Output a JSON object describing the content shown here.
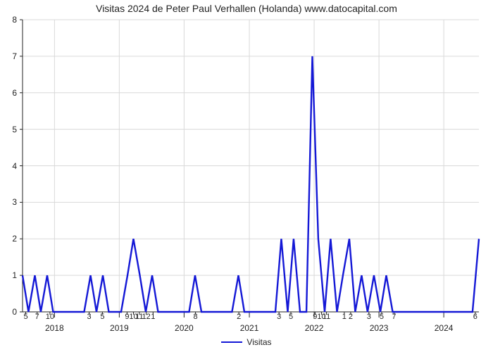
{
  "chart": {
    "type": "line",
    "title": "Visitas 2024 de Peter Paul Verhallen (Holanda) www.datocapital.com",
    "title_fontsize": 14,
    "title_color": "#222222",
    "background_color": "#ffffff",
    "plot_bg": "#ffffff",
    "axis_color": "#222222",
    "grid_color": "#d9d9d9",
    "grid_width": 1,
    "line_color": "#1418d6",
    "line_width": 2.4,
    "font_family": "Arial",
    "ylim": [
      0,
      8
    ],
    "ytick_step": 1,
    "yticks": [
      0,
      1,
      2,
      3,
      4,
      5,
      6,
      7,
      8
    ],
    "xtick_labels": [
      "5",
      "7",
      "10",
      "3",
      "5",
      "9",
      "10",
      "11",
      "12",
      "1",
      "8",
      "2",
      "3",
      "5",
      "9",
      "10",
      "11",
      "1",
      "2",
      "3",
      "5",
      "7",
      "6"
    ],
    "xtick_positions": [
      0.007,
      0.032,
      0.06,
      0.146,
      0.175,
      0.229,
      0.243,
      0.256,
      0.271,
      0.286,
      0.379,
      0.474,
      0.562,
      0.588,
      0.641,
      0.655,
      0.666,
      0.705,
      0.719,
      0.759,
      0.787,
      0.814,
      0.992
    ],
    "year_ticks": [
      {
        "pos": 0.07,
        "label": "2018"
      },
      {
        "pos": 0.212,
        "label": "2019"
      },
      {
        "pos": 0.354,
        "label": "2020"
      },
      {
        "pos": 0.497,
        "label": "2021"
      },
      {
        "pos": 0.639,
        "label": "2022"
      },
      {
        "pos": 0.781,
        "label": "2023"
      },
      {
        "pos": 0.923,
        "label": "2024"
      }
    ],
    "year_tick_color": "#222222",
    "series_name": "Visitas",
    "points": [
      {
        "x": 0.0,
        "y": 1
      },
      {
        "x": 0.013,
        "y": 0
      },
      {
        "x": 0.027,
        "y": 1
      },
      {
        "x": 0.04,
        "y": 0
      },
      {
        "x": 0.054,
        "y": 1
      },
      {
        "x": 0.067,
        "y": 0
      },
      {
        "x": 0.081,
        "y": 0
      },
      {
        "x": 0.094,
        "y": 0
      },
      {
        "x": 0.108,
        "y": 0
      },
      {
        "x": 0.122,
        "y": 0
      },
      {
        "x": 0.135,
        "y": 0
      },
      {
        "x": 0.149,
        "y": 1
      },
      {
        "x": 0.162,
        "y": 0
      },
      {
        "x": 0.176,
        "y": 1
      },
      {
        "x": 0.189,
        "y": 0
      },
      {
        "x": 0.203,
        "y": 0
      },
      {
        "x": 0.216,
        "y": 0
      },
      {
        "x": 0.23,
        "y": 1
      },
      {
        "x": 0.243,
        "y": 2
      },
      {
        "x": 0.257,
        "y": 1
      },
      {
        "x": 0.27,
        "y": 0
      },
      {
        "x": 0.284,
        "y": 1
      },
      {
        "x": 0.297,
        "y": 0
      },
      {
        "x": 0.311,
        "y": 0
      },
      {
        "x": 0.324,
        "y": 0
      },
      {
        "x": 0.338,
        "y": 0
      },
      {
        "x": 0.351,
        "y": 0
      },
      {
        "x": 0.365,
        "y": 0
      },
      {
        "x": 0.378,
        "y": 1
      },
      {
        "x": 0.392,
        "y": 0
      },
      {
        "x": 0.405,
        "y": 0
      },
      {
        "x": 0.419,
        "y": 0
      },
      {
        "x": 0.432,
        "y": 0
      },
      {
        "x": 0.446,
        "y": 0
      },
      {
        "x": 0.459,
        "y": 0
      },
      {
        "x": 0.473,
        "y": 1
      },
      {
        "x": 0.486,
        "y": 0
      },
      {
        "x": 0.5,
        "y": 0
      },
      {
        "x": 0.513,
        "y": 0
      },
      {
        "x": 0.527,
        "y": 0
      },
      {
        "x": 0.54,
        "y": 0
      },
      {
        "x": 0.554,
        "y": 0
      },
      {
        "x": 0.567,
        "y": 2
      },
      {
        "x": 0.581,
        "y": 0
      },
      {
        "x": 0.594,
        "y": 2
      },
      {
        "x": 0.608,
        "y": 0
      },
      {
        "x": 0.615,
        "y": 0
      },
      {
        "x": 0.622,
        "y": 0
      },
      {
        "x": 0.635,
        "y": 7
      },
      {
        "x": 0.648,
        "y": 2
      },
      {
        "x": 0.662,
        "y": 0
      },
      {
        "x": 0.675,
        "y": 2
      },
      {
        "x": 0.689,
        "y": 0
      },
      {
        "x": 0.702,
        "y": 1
      },
      {
        "x": 0.716,
        "y": 2
      },
      {
        "x": 0.729,
        "y": 0
      },
      {
        "x": 0.743,
        "y": 1
      },
      {
        "x": 0.756,
        "y": 0
      },
      {
        "x": 0.77,
        "y": 1
      },
      {
        "x": 0.784,
        "y": 0
      },
      {
        "x": 0.797,
        "y": 1
      },
      {
        "x": 0.811,
        "y": 0
      },
      {
        "x": 0.824,
        "y": 0
      },
      {
        "x": 0.838,
        "y": 0
      },
      {
        "x": 0.851,
        "y": 0
      },
      {
        "x": 0.865,
        "y": 0
      },
      {
        "x": 0.878,
        "y": 0
      },
      {
        "x": 0.892,
        "y": 0
      },
      {
        "x": 0.905,
        "y": 0
      },
      {
        "x": 0.919,
        "y": 0
      },
      {
        "x": 0.932,
        "y": 0
      },
      {
        "x": 0.946,
        "y": 0
      },
      {
        "x": 0.959,
        "y": 0
      },
      {
        "x": 0.973,
        "y": 0
      },
      {
        "x": 0.986,
        "y": 0
      },
      {
        "x": 1.0,
        "y": 2
      }
    ]
  }
}
